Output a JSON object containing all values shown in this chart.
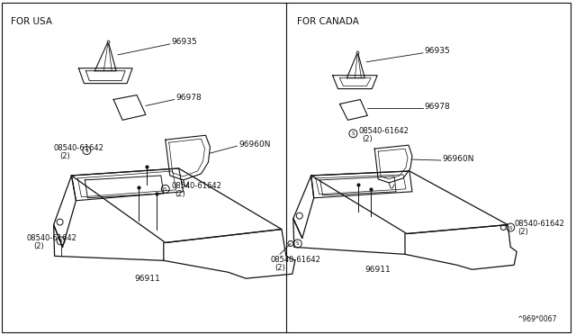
{
  "background_color": "#ffffff",
  "line_color": "#111111",
  "text_color": "#111111",
  "label_usa": "FOR USA",
  "label_canada": "FOR CANADA",
  "watermark": "^969*0067",
  "font_size_label": 7.5,
  "font_size_part": 6.5,
  "font_size_small": 6.0,
  "parts": {
    "96935": "96935",
    "96978": "96978",
    "96960N": "96960N",
    "96911": "96911",
    "screw": "08540-61642",
    "qty": "(2)"
  }
}
